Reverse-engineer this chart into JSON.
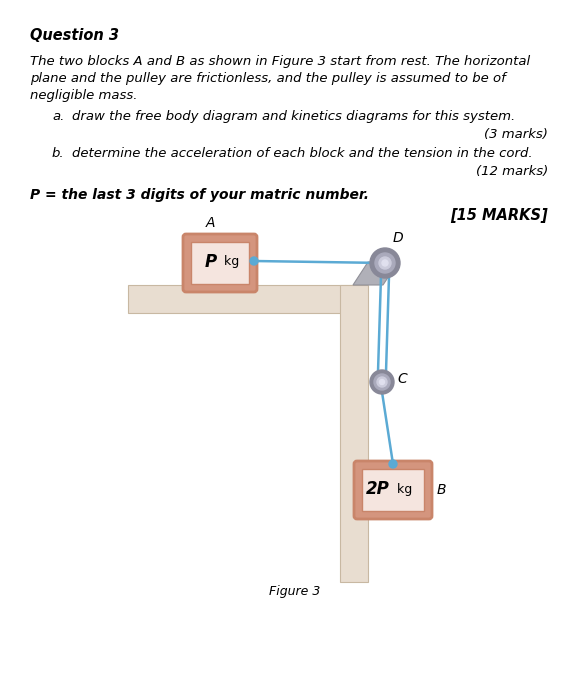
{
  "bg_color": "#ffffff",
  "title": "Question 3",
  "body_text": [
    "The two blocks A and B as shown in Figure 3 start from rest. The horizontal",
    "plane and the pulley are frictionless, and the pulley is assumed to be of",
    "negligible mass."
  ],
  "qa": [
    {
      "label": "a.",
      "text": "draw the free body diagram and kinetics diagrams for this system.",
      "marks": "(3 marks)"
    },
    {
      "label": "b.",
      "text": "determine the acceleration of each block and the tension in the cord.",
      "marks": "(12 marks)"
    }
  ],
  "p_text": "P = the last 3 digits of your matric number.",
  "total_marks": "[15 MARKS]",
  "fig_label": "Figure 3",
  "block_outer_color": "#c9856a",
  "block_fill_color": "#d4957e",
  "block_inner_color": "#f5e5df",
  "rope_color": "#5baad4",
  "wall_color": "#e8ddd0",
  "wall_edge_color": "#c8b8a2",
  "bracket_color": "#aaaaaa",
  "pulley_outer": "#888898",
  "pulley_mid": "#aaaabc",
  "pulley_inner": "#ccccdc",
  "pulley_center": "#e0e0ee"
}
